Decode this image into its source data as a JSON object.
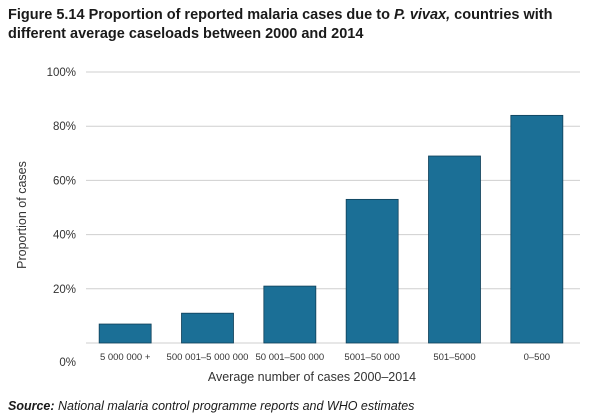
{
  "figure": {
    "title_prefix": "Figure 5.14 Proportion of reported malaria cases due to ",
    "title_italic": "P. vivax,",
    "title_suffix": " countries with different average caseloads between 2000 and 2014",
    "source_label": "Source:",
    "source_text": " National malaria control programme reports and WHO estimates"
  },
  "colors": {
    "bar": "#1b6f96",
    "bar_edge": "#0f3f58",
    "grid": "#cfcfcf",
    "text": "#333333"
  },
  "chart_data": {
    "type": "bar",
    "title": "Figure 5.14 Proportion of reported malaria cases due to P. vivax, countries with different average caseloads between 2000 and 2014",
    "xlabel": "Average number of cases 2000–2014",
    "ylabel": "Proportion of cases",
    "categories": [
      "5 000 000 +",
      "500 001–5 000 000",
      "50 001–500 000",
      "5001–50 000",
      "501–5000",
      "0–500"
    ],
    "values": [
      7,
      11,
      21,
      53,
      69,
      84
    ],
    "ylim": [
      0,
      100
    ],
    "yticks": [
      0,
      20,
      40,
      60,
      80,
      100
    ],
    "ytick_labels": [
      "0%",
      "20%",
      "40%",
      "60%",
      "80%",
      "100%"
    ],
    "grid": true,
    "legend": "none"
  }
}
